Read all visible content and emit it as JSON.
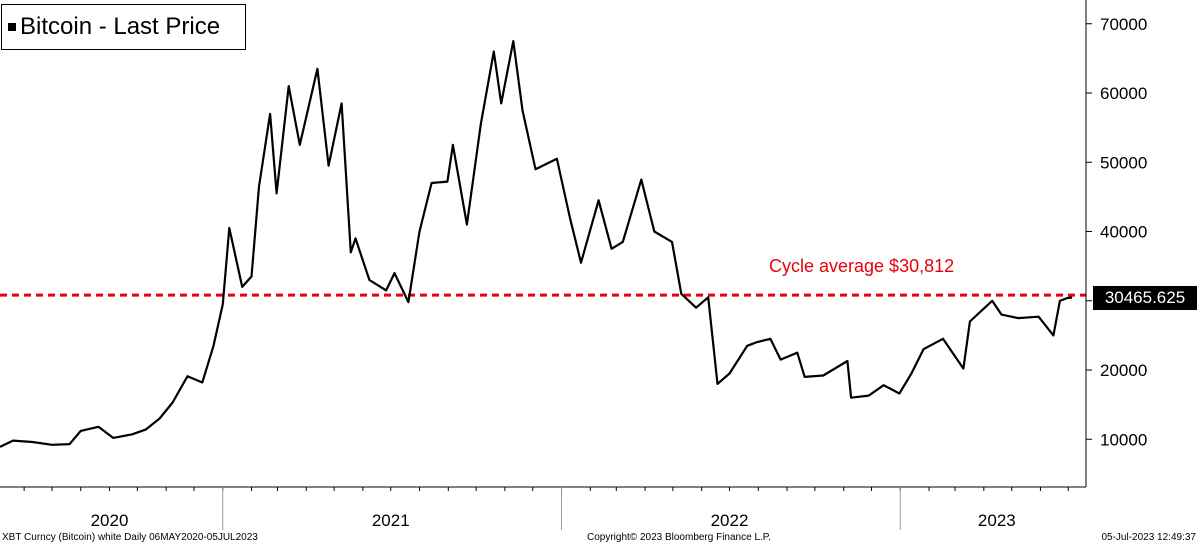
{
  "chart_data": {
    "type": "line",
    "title": "Bitcoin - Last Price",
    "legend_position": "top-left",
    "grid": false,
    "series": [
      {
        "name": "Bitcoin - Last Price",
        "color": "#000000",
        "points": [
          [
            "2020-05-06",
            8900
          ],
          [
            "2020-05-20",
            9800
          ],
          [
            "2020-06-10",
            9600
          ],
          [
            "2020-07-01",
            9200
          ],
          [
            "2020-07-20",
            9300
          ],
          [
            "2020-08-01",
            11200
          ],
          [
            "2020-08-20",
            11800
          ],
          [
            "2020-09-05",
            10200
          ],
          [
            "2020-09-25",
            10700
          ],
          [
            "2020-10-10",
            11400
          ],
          [
            "2020-10-25",
            13000
          ],
          [
            "2020-11-08",
            15300
          ],
          [
            "2020-11-24",
            19100
          ],
          [
            "2020-12-10",
            18200
          ],
          [
            "2020-12-22",
            23500
          ],
          [
            "2021-01-01",
            29500
          ],
          [
            "2021-01-08",
            40500
          ],
          [
            "2021-01-22",
            32000
          ],
          [
            "2021-02-01",
            33500
          ],
          [
            "2021-02-09",
            46500
          ],
          [
            "2021-02-21",
            57000
          ],
          [
            "2021-02-28",
            45500
          ],
          [
            "2021-03-13",
            61000
          ],
          [
            "2021-03-25",
            52500
          ],
          [
            "2021-04-13",
            63500
          ],
          [
            "2021-04-25",
            49500
          ],
          [
            "2021-05-09",
            58500
          ],
          [
            "2021-05-19",
            37000
          ],
          [
            "2021-05-24",
            39000
          ],
          [
            "2021-06-08",
            33000
          ],
          [
            "2021-06-26",
            31500
          ],
          [
            "2021-07-05",
            34000
          ],
          [
            "2021-07-20",
            29800
          ],
          [
            "2021-08-01",
            40000
          ],
          [
            "2021-08-14",
            47000
          ],
          [
            "2021-08-31",
            47200
          ],
          [
            "2021-09-06",
            52500
          ],
          [
            "2021-09-21",
            41000
          ],
          [
            "2021-10-06",
            55500
          ],
          [
            "2021-10-20",
            66000
          ],
          [
            "2021-10-28",
            58500
          ],
          [
            "2021-11-10",
            67500
          ],
          [
            "2021-11-20",
            57500
          ],
          [
            "2021-12-04",
            49000
          ],
          [
            "2021-12-27",
            50500
          ],
          [
            "2022-01-10",
            42000
          ],
          [
            "2022-01-22",
            35500
          ],
          [
            "2022-02-10",
            44500
          ],
          [
            "2022-02-24",
            37500
          ],
          [
            "2022-03-08",
            38500
          ],
          [
            "2022-03-28",
            47500
          ],
          [
            "2022-04-11",
            40000
          ],
          [
            "2022-04-30",
            38500
          ],
          [
            "2022-05-10",
            31000
          ],
          [
            "2022-05-26",
            29000
          ],
          [
            "2022-06-08",
            30500
          ],
          [
            "2022-06-18",
            18000
          ],
          [
            "2022-07-01",
            19500
          ],
          [
            "2022-07-20",
            23500
          ],
          [
            "2022-07-30",
            24000
          ],
          [
            "2022-08-14",
            24500
          ],
          [
            "2022-08-25",
            21500
          ],
          [
            "2022-09-12",
            22500
          ],
          [
            "2022-09-20",
            19000
          ],
          [
            "2022-10-10",
            19200
          ],
          [
            "2022-11-05",
            21300
          ],
          [
            "2022-11-09",
            16000
          ],
          [
            "2022-11-28",
            16300
          ],
          [
            "2022-12-14",
            17800
          ],
          [
            "2022-12-31",
            16600
          ],
          [
            "2023-01-13",
            19500
          ],
          [
            "2023-01-26",
            23000
          ],
          [
            "2023-02-16",
            24500
          ],
          [
            "2023-03-10",
            20200
          ],
          [
            "2023-03-17",
            27000
          ],
          [
            "2023-04-10",
            30000
          ],
          [
            "2023-04-20",
            28000
          ],
          [
            "2023-05-08",
            27500
          ],
          [
            "2023-05-30",
            27700
          ],
          [
            "2023-06-15",
            25000
          ],
          [
            "2023-06-22",
            30000
          ],
          [
            "2023-06-30",
            30400
          ],
          [
            "2023-07-05",
            30465.625
          ]
        ]
      }
    ],
    "reference_line": {
      "label": "Cycle average $30,812",
      "value": 30812,
      "color": "#e8000b",
      "style": "dashed"
    },
    "last_value_label": "30465.625",
    "y_axis": {
      "side": "right",
      "ticks": [
        {
          "value": 10000,
          "label": "10000"
        },
        {
          "value": 20000,
          "label": "20000"
        },
        {
          "value": 30000,
          "label": "30000"
        },
        {
          "value": 40000,
          "label": "40000"
        },
        {
          "value": 50000,
          "label": "50000"
        },
        {
          "value": 60000,
          "label": "60000"
        },
        {
          "value": 70000,
          "label": "70000"
        }
      ]
    },
    "x_axis": {
      "type": "date",
      "range": [
        "2020-05-06",
        "2023-07-05"
      ],
      "year_labels": [
        {
          "label": "2020",
          "at": "2020-09-01"
        },
        {
          "label": "2021",
          "at": "2021-07-01"
        },
        {
          "label": "2022",
          "at": "2022-07-01"
        },
        {
          "label": "2023",
          "at": "2023-04-15"
        }
      ],
      "year_boundaries": [
        "2021-01-01",
        "2022-01-01",
        "2023-01-01"
      ]
    }
  },
  "footer": {
    "left": "XBT Curncy (Bitcoin) white  Daily 06MAY2020-05JUL2023",
    "center": "Copyright© 2023 Bloomberg Finance L.P.",
    "right": "05-Jul-2023 12:49:37"
  }
}
